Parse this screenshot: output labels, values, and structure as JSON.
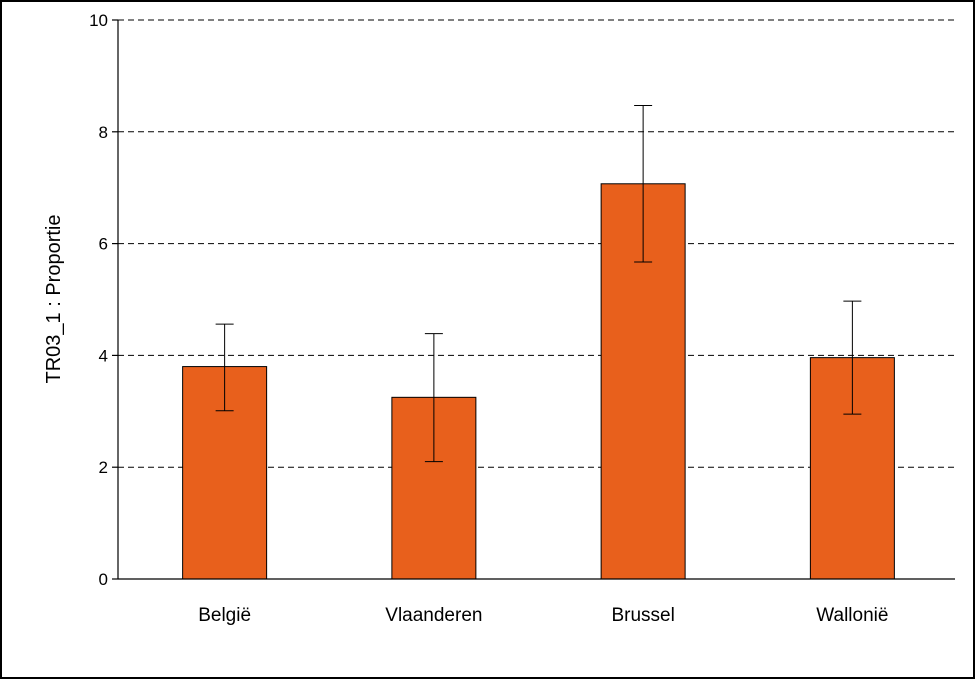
{
  "chart_data": {
    "type": "bar",
    "categories": [
      "België",
      "Vlaanderen",
      "Brussel",
      "Wallonië"
    ],
    "values": [
      3.8,
      3.25,
      7.07,
      3.96
    ],
    "error_low": [
      3.01,
      2.1,
      5.67,
      2.95
    ],
    "error_high": [
      4.56,
      4.39,
      8.47,
      4.97
    ],
    "title": "",
    "xlabel": "",
    "ylabel": "TR03_1 : Proportie",
    "ylim": [
      0,
      10
    ],
    "yticks": [
      0,
      2,
      4,
      6,
      8,
      10
    ],
    "grid": true,
    "bar_color": "#E8601C"
  }
}
